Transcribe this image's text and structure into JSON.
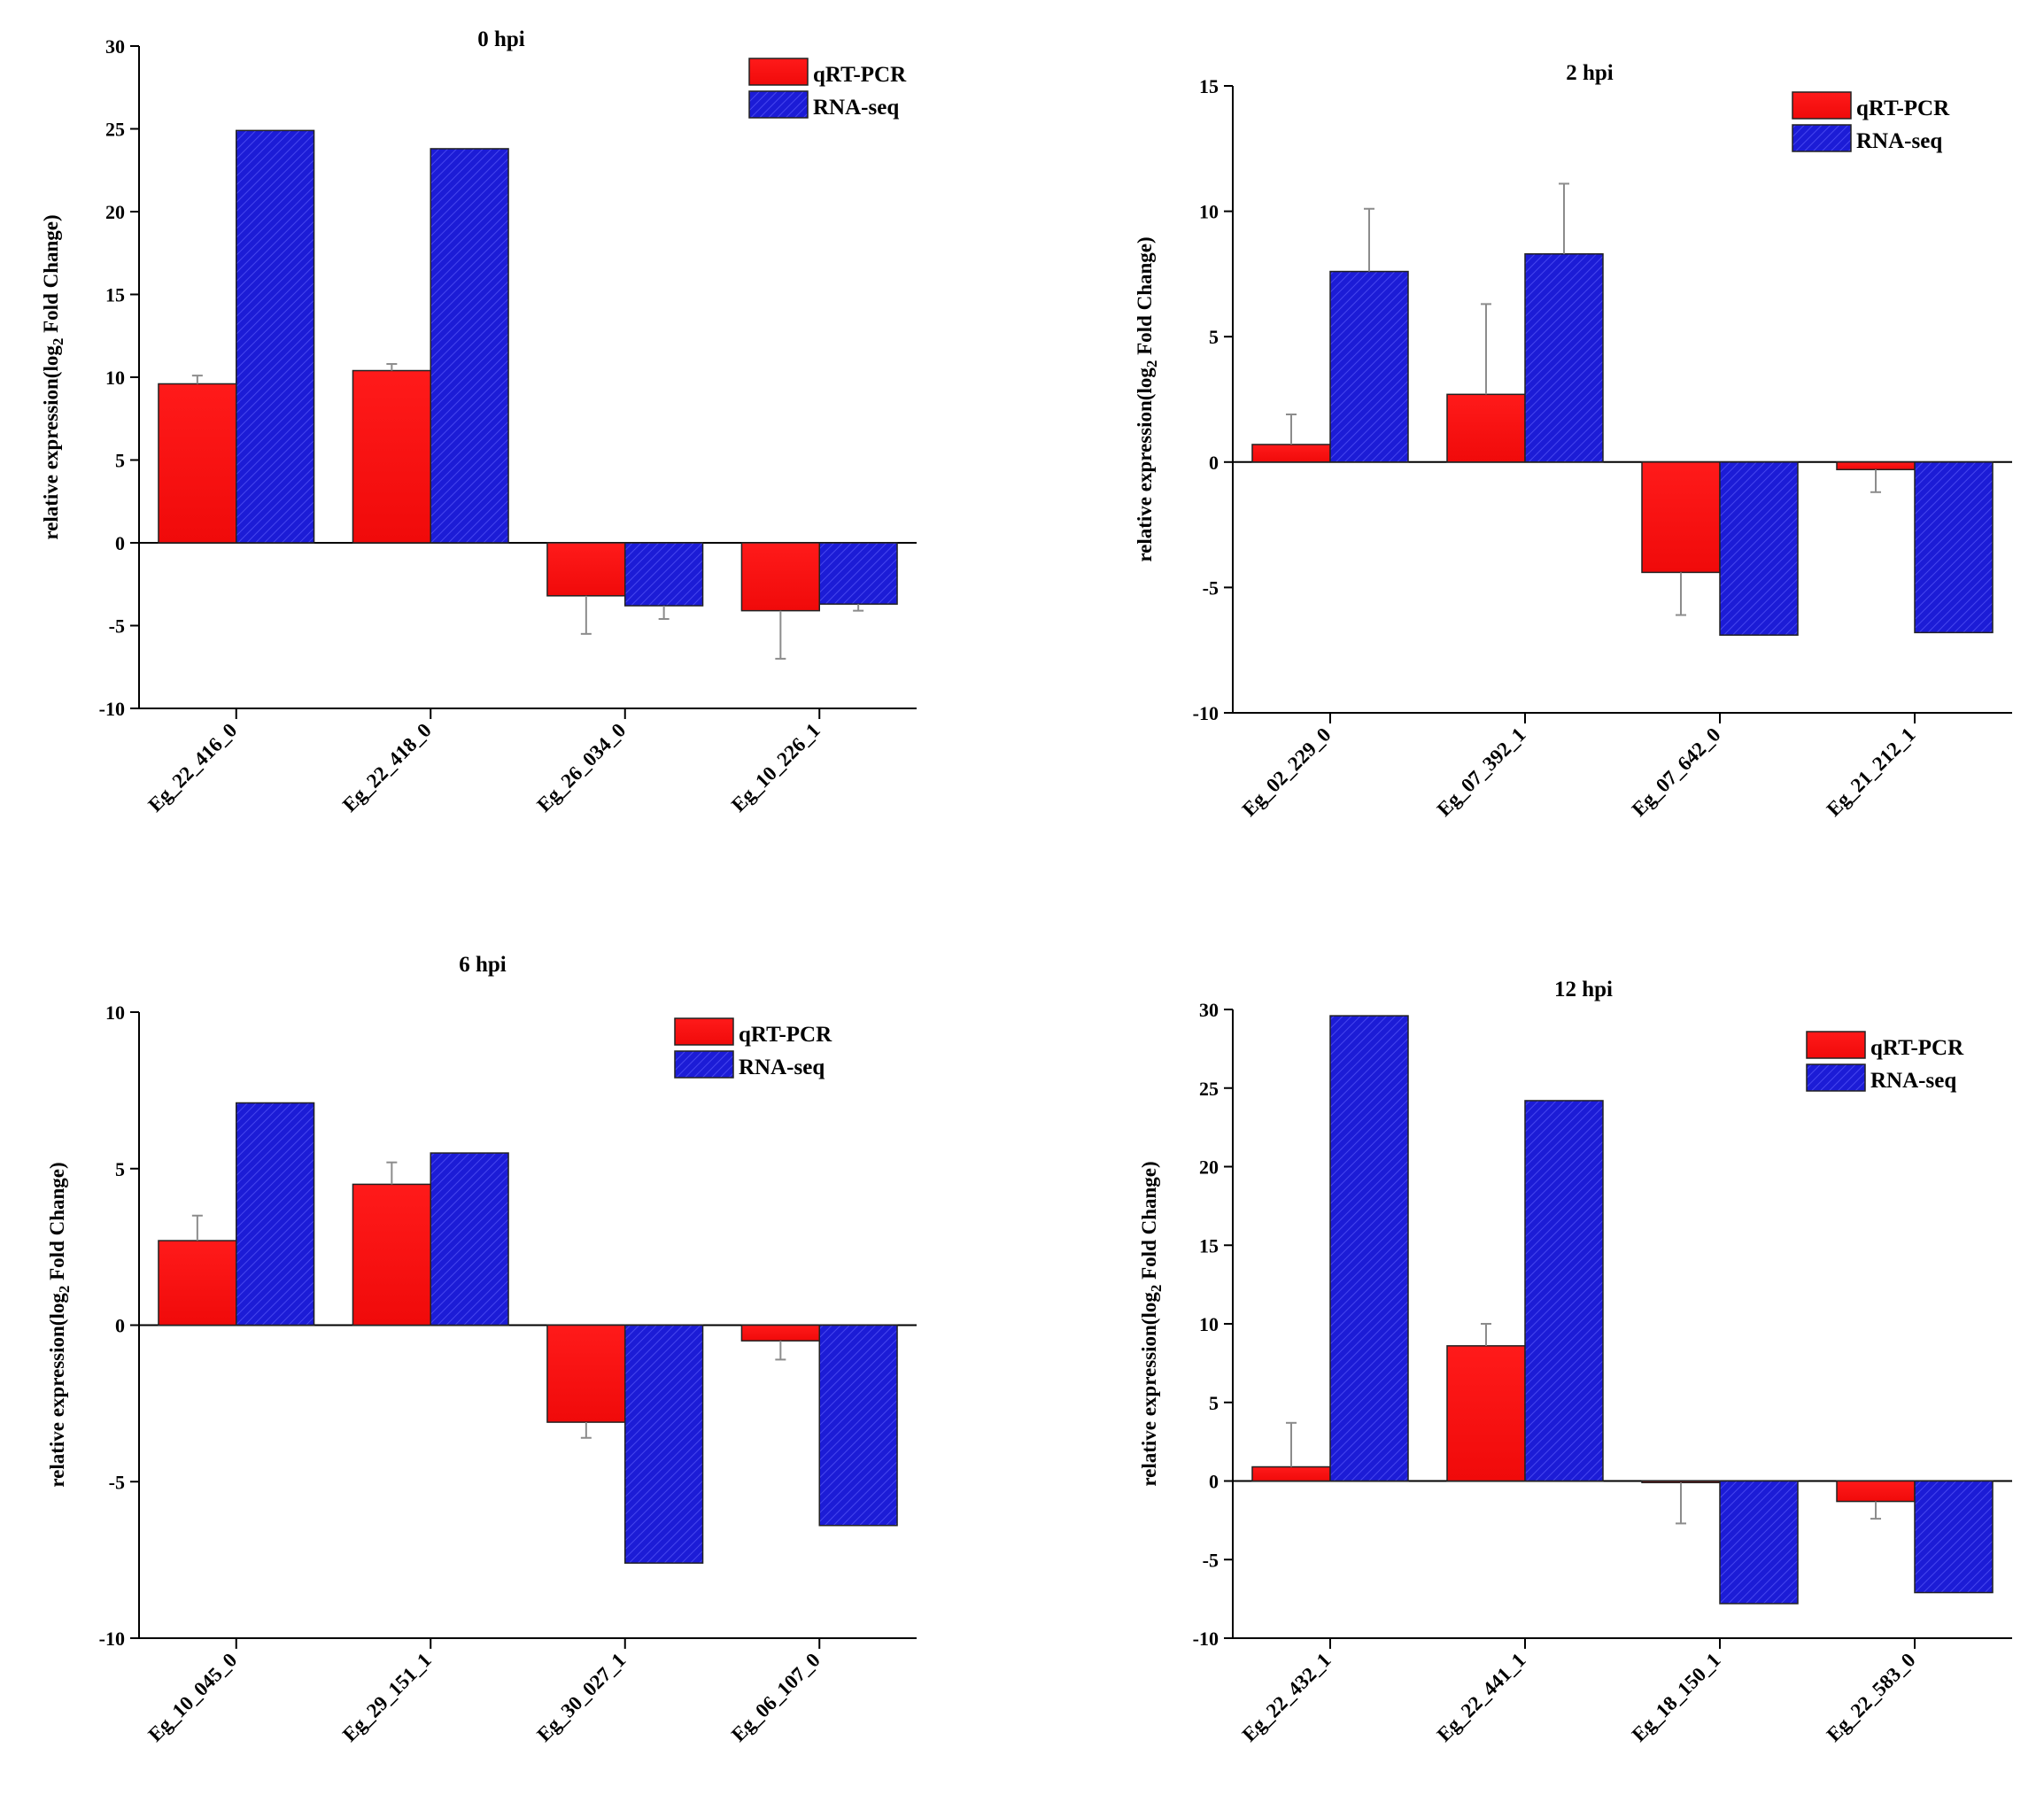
{
  "figure_title": "qRT-PCR vs RNA-seq relative expression",
  "colors": {
    "qrt_pcr": "#ff0d0d",
    "rna_seq": "#1c1cd6",
    "rna_seq_hatch": "#3a3ae6",
    "error_bar": "#8c8c8c"
  },
  "chart_data": [
    {
      "type": "bar",
      "title": "0 hpi",
      "ylabel": "relative expression(log2 Fold Change)",
      "ylabel_main": "relative expression(log",
      "ylabel_sub": "2",
      "ylabel_tail": " Fold Change)",
      "xlabel": "",
      "ylim": [
        -10,
        30
      ],
      "yticks": [
        -10,
        -5,
        0,
        5,
        10,
        15,
        20,
        25,
        30
      ],
      "legend": [
        "qRT-PCR",
        "RNA-seq"
      ],
      "legend_position": "top-right",
      "categories": [
        "Eg_22_416_0",
        "Eg_22_418_0",
        "Eg_26_034_0",
        "Eg_10_226_1"
      ],
      "series": [
        {
          "name": "qRT-PCR",
          "values": [
            9.6,
            10.4,
            -3.2,
            -4.1
          ],
          "errors": [
            0.5,
            0.4,
            2.3,
            2.9
          ]
        },
        {
          "name": "RNA-seq",
          "values": [
            24.9,
            23.8,
            -3.8,
            -3.7
          ],
          "errors": [
            0,
            0,
            0.8,
            0.4
          ]
        }
      ]
    },
    {
      "type": "bar",
      "title": "2 hpi",
      "ylabel": "relative expression(log2 Fold Change)",
      "ylabel_main": "relative expression(log",
      "ylabel_sub": "2",
      "ylabel_tail": " Fold Change)",
      "xlabel": "",
      "ylim": [
        -10,
        15
      ],
      "yticks": [
        -10,
        -5,
        0,
        5,
        10,
        15
      ],
      "legend": [
        "qRT-PCR",
        "RNA-seq"
      ],
      "legend_position": "top-right",
      "categories": [
        "Eg_02_229_0",
        "Eg_07_392_1",
        "Eg_07_642_0",
        "Eg_21_212_1"
      ],
      "series": [
        {
          "name": "qRT-PCR",
          "values": [
            0.7,
            2.7,
            -4.4,
            -0.3
          ],
          "errors": [
            1.2,
            3.6,
            1.7,
            0.9
          ]
        },
        {
          "name": "RNA-seq",
          "values": [
            7.6,
            8.3,
            -6.9,
            -6.8
          ],
          "errors": [
            2.5,
            2.8,
            0,
            0
          ]
        }
      ]
    },
    {
      "type": "bar",
      "title": "6 hpi",
      "ylabel": "relative expression(log2 Fold Change)",
      "ylabel_main": "relative expression(log",
      "ylabel_sub": "2",
      "ylabel_tail": " Fold Change)",
      "xlabel": "",
      "ylim": [
        -10,
        10
      ],
      "yticks": [
        -10,
        -5,
        0,
        5,
        10
      ],
      "legend": [
        "qRT-PCR",
        "RNA-seq"
      ],
      "legend_position": "top-right",
      "categories": [
        "Eg_10_045_0",
        "Eg_29_151_1",
        "Eg_30_027_1",
        "Eg_06_107_0"
      ],
      "series": [
        {
          "name": "qRT-PCR",
          "values": [
            2.7,
            4.5,
            -3.1,
            -0.5
          ],
          "errors": [
            0.8,
            0.7,
            0.5,
            0.6
          ]
        },
        {
          "name": "RNA-seq",
          "values": [
            7.1,
            5.5,
            -7.6,
            -6.4
          ],
          "errors": [
            0,
            0,
            0,
            0
          ]
        }
      ]
    },
    {
      "type": "bar",
      "title": "12 hpi",
      "ylabel": "relative expression(log2 Fold Change)",
      "ylabel_main": "relative expression(log",
      "ylabel_sub": "2",
      "ylabel_tail": " Fold Change)",
      "xlabel": "",
      "ylim": [
        -10,
        30
      ],
      "yticks": [
        -10,
        -5,
        0,
        5,
        10,
        15,
        20,
        25,
        30
      ],
      "legend": [
        "qRT-PCR",
        "RNA-seq"
      ],
      "legend_position": "top-right",
      "categories": [
        "Eg_22_432_1",
        "Eg_22_441_1",
        "Eg_18_150_1",
        "Eg_22_583_0"
      ],
      "series": [
        {
          "name": "qRT-PCR",
          "values": [
            0.9,
            8.6,
            -0.1,
            -1.3
          ],
          "errors": [
            2.8,
            1.4,
            2.6,
            1.1
          ]
        },
        {
          "name": "RNA-seq",
          "values": [
            29.6,
            24.2,
            -7.8,
            -7.1
          ],
          "errors": [
            0,
            0,
            0,
            0
          ]
        }
      ]
    }
  ]
}
